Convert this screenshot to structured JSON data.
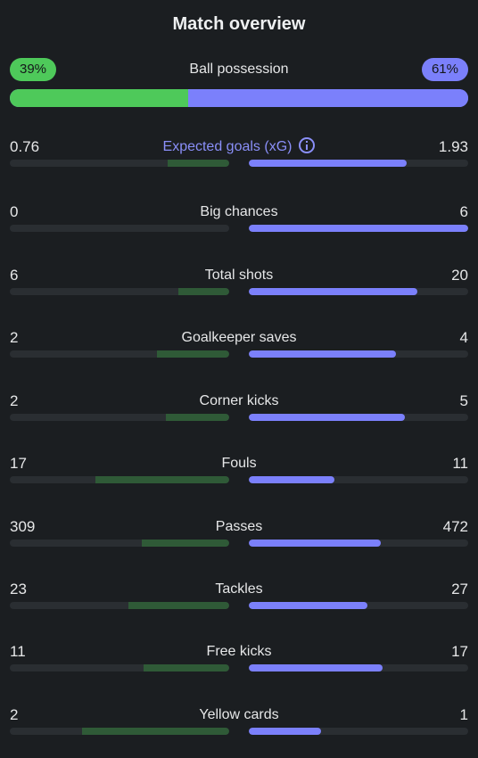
{
  "title": "Match overview",
  "possession": {
    "label": "Ball possession",
    "home_text": "39%",
    "away_text": "61%",
    "home": 39,
    "away": 61
  },
  "colors": {
    "home": "#4ec95a",
    "home_bar": "#2f5a37",
    "away": "#7b80fb",
    "background": "#1b1e21",
    "track": "#2a2e32"
  },
  "stats": [
    {
      "label": "Expected goals (xG)",
      "home": "0.76",
      "away": "1.93",
      "home_frac": 0.28,
      "away_frac": 0.72,
      "icon": "info-icon"
    },
    {
      "label": "Big chances",
      "home": "0",
      "away": "6",
      "home_frac": 0.0,
      "away_frac": 1.0
    },
    {
      "label": "Total shots",
      "home": "6",
      "away": "20",
      "home_frac": 0.23,
      "away_frac": 0.77
    },
    {
      "label": "Goalkeeper saves",
      "home": "2",
      "away": "4",
      "home_frac": 0.33,
      "away_frac": 0.67
    },
    {
      "label": "Corner kicks",
      "home": "2",
      "away": "5",
      "home_frac": 0.29,
      "away_frac": 0.71
    },
    {
      "label": "Fouls",
      "home": "17",
      "away": "11",
      "home_frac": 0.61,
      "away_frac": 0.39
    },
    {
      "label": "Passes",
      "home": "309",
      "away": "472",
      "home_frac": 0.4,
      "away_frac": 0.6
    },
    {
      "label": "Tackles",
      "home": "23",
      "away": "27",
      "home_frac": 0.46,
      "away_frac": 0.54
    },
    {
      "label": "Free kicks",
      "home": "11",
      "away": "17",
      "home_frac": 0.39,
      "away_frac": 0.61
    },
    {
      "label": "Yellow cards",
      "home": "2",
      "away": "1",
      "home_frac": 0.67,
      "away_frac": 0.33
    }
  ]
}
